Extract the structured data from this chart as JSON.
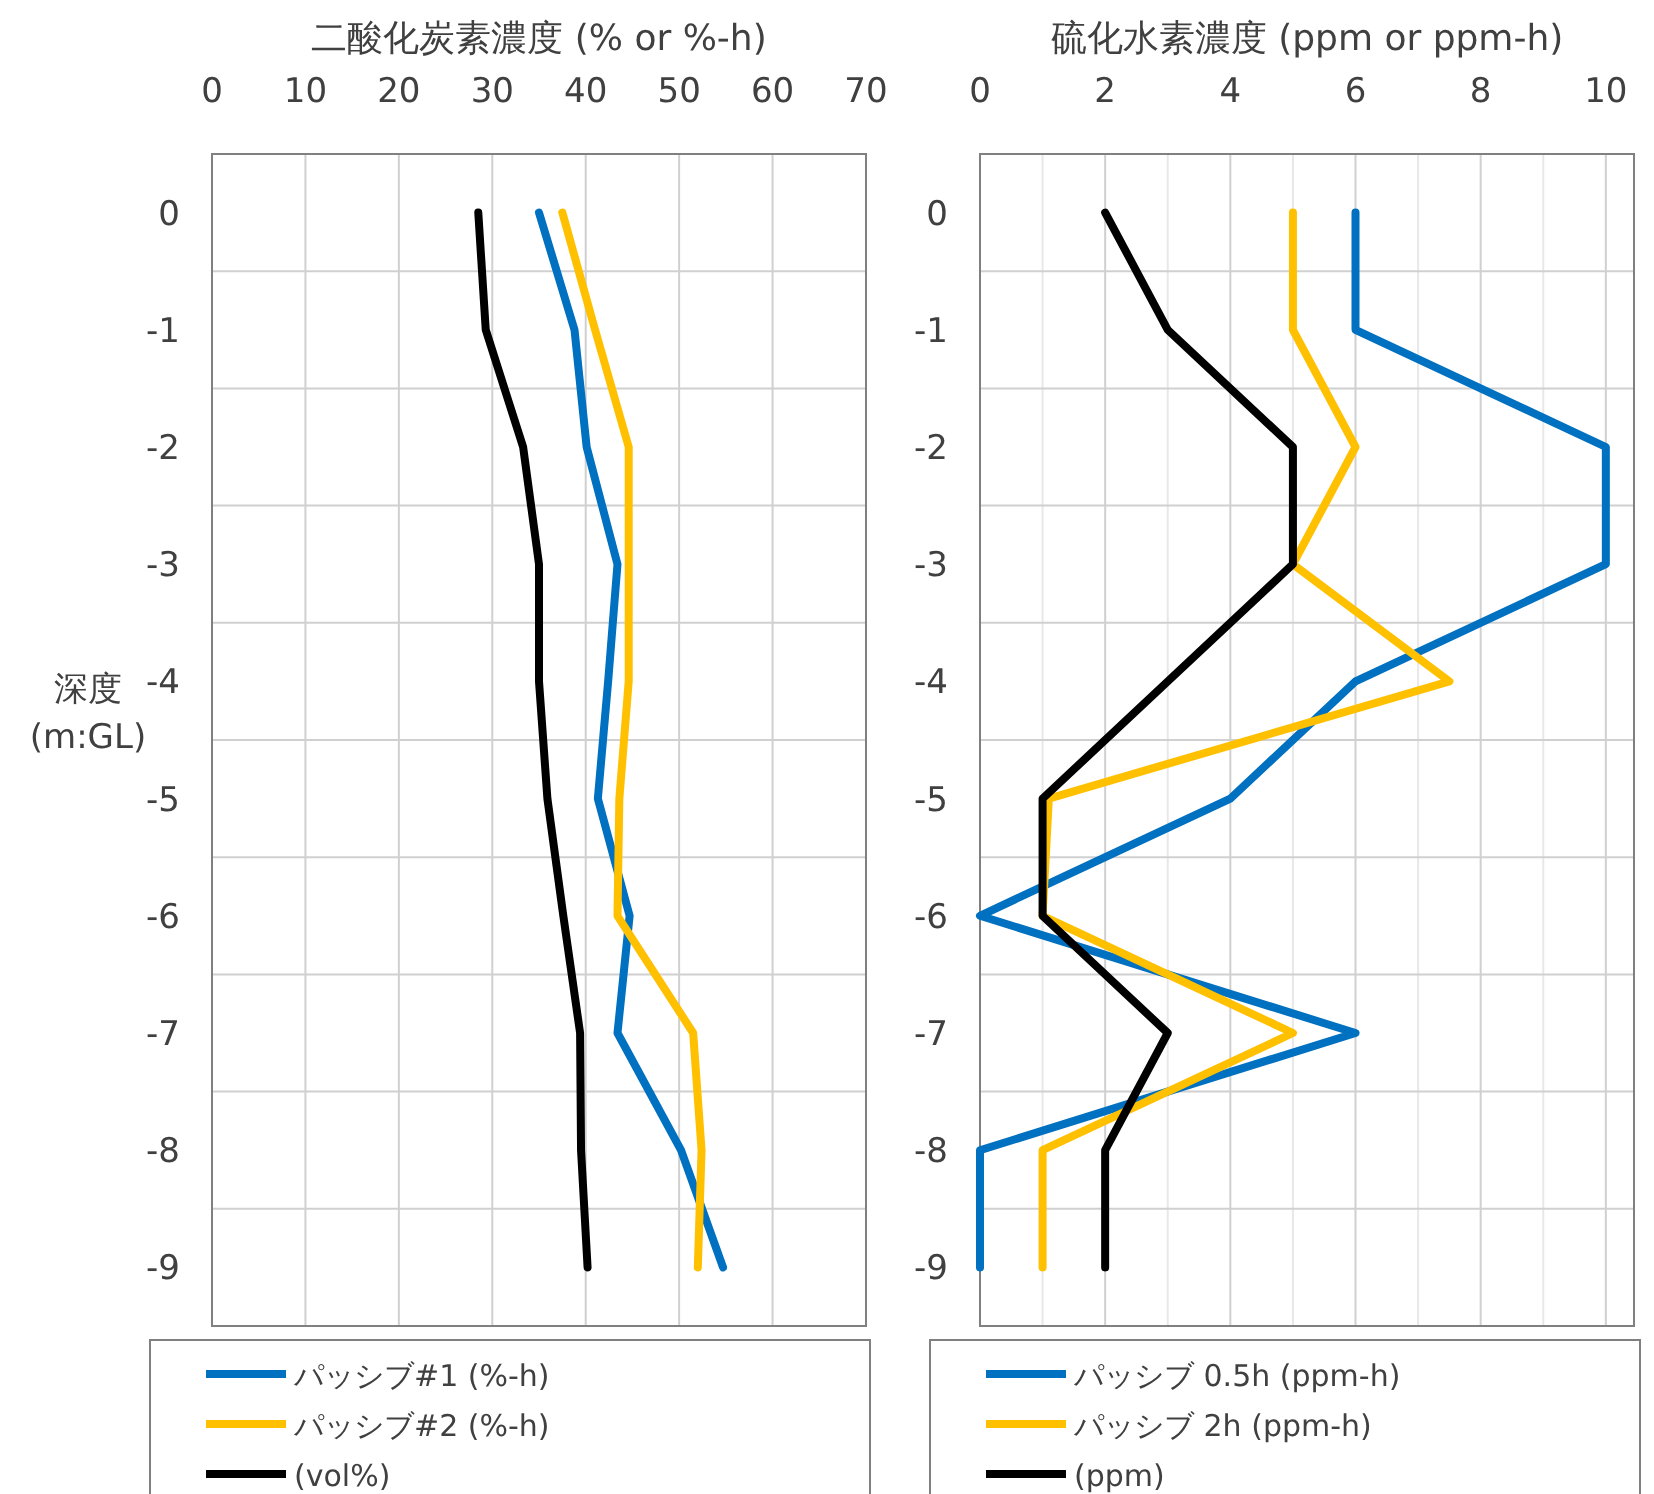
{
  "chart_data": [
    {
      "type": "line",
      "title": "二酸化炭素濃度 (% or %-h)",
      "ylabel": "深度\n(m:GL)",
      "orientation": "horizontal",
      "legend": "bottom",
      "grid": true,
      "marker": "none",
      "line_style": "solid",
      "xlim": [
        0,
        70
      ],
      "xticks": [
        0,
        10,
        20,
        30,
        40,
        50,
        60,
        70
      ],
      "categories": [
        "0",
        "-1",
        "-2",
        "-3",
        "-4",
        "-5",
        "-6",
        "-7",
        "-8",
        "-9"
      ],
      "series": [
        {
          "name": "パッシブ#1 (%-h)",
          "color": "#0070c0",
          "values": [
            35,
            38.8,
            40.1,
            43.4,
            42.4,
            41.3,
            44.7,
            43.4,
            50.2,
            54.7
          ]
        },
        {
          "name": "パッシブ#2 (%-h)",
          "color": "#ffc000",
          "values": [
            37.5,
            41,
            44.6,
            44.6,
            44.6,
            43.6,
            43.4,
            51.5,
            52.4,
            52
          ]
        },
        {
          "name": "(vol%)",
          "color": "#000000",
          "values": [
            28.5,
            29.3,
            33.3,
            35,
            35,
            35.9,
            37.6,
            39.4,
            39.5,
            40.2
          ]
        }
      ]
    },
    {
      "type": "line",
      "title": "硫化水素濃度 (ppm or ppm-h)",
      "orientation": "horizontal",
      "legend": "bottom",
      "grid": true,
      "marker": "none",
      "line_style": "solid",
      "xlim": [
        0,
        10.45
      ],
      "xticks": [
        0,
        {
          "value": 1,
          "label": null
        },
        2,
        {
          "value": 3,
          "label": null
        },
        4,
        {
          "value": 5,
          "label": null
        },
        6,
        {
          "value": 7,
          "label": null
        },
        8,
        {
          "value": 9,
          "label": null
        },
        10
      ],
      "categories": [
        "0",
        "-1",
        "-2",
        "-3",
        "-4",
        "-5",
        "-6",
        "-7",
        "-8",
        "-9"
      ],
      "series": [
        {
          "name": "パッシブ 0.5h (ppm-h)",
          "color": "#0070c0",
          "values": [
            6,
            6,
            10,
            10,
            6,
            4,
            0,
            6,
            0,
            0
          ]
        },
        {
          "name": "パッシブ 2h (ppm-h)",
          "color": "#ffc000",
          "values": [
            5,
            5,
            6,
            5,
            7.5,
            1.1,
            1,
            5,
            1,
            1
          ]
        },
        {
          "name": "(ppm)",
          "color": "#000000",
          "values": [
            2,
            3,
            5,
            5,
            3,
            1,
            1,
            3,
            2,
            2
          ]
        }
      ]
    }
  ]
}
